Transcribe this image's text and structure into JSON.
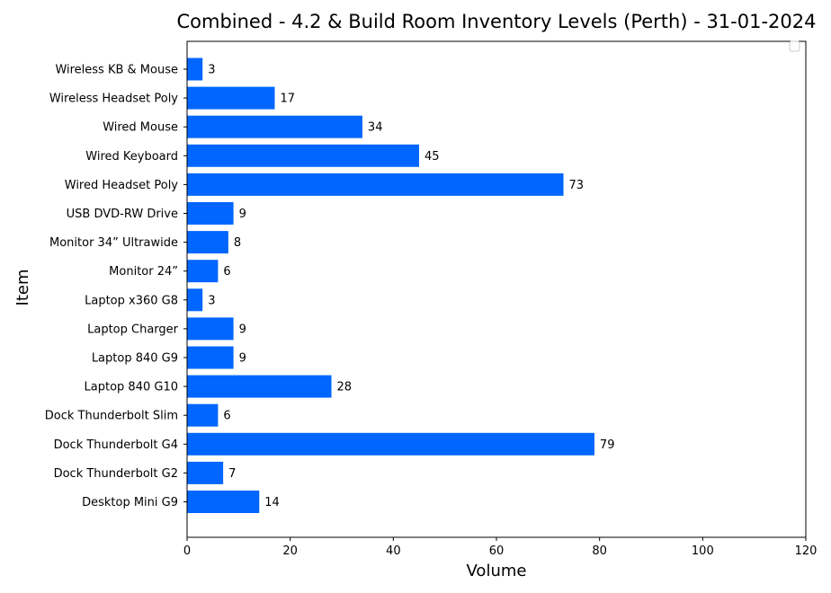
{
  "chart_data": {
    "type": "bar",
    "orientation": "horizontal",
    "title": "Combined - 4.2 & Build Room Inventory Levels (Perth) - 31-01-2024",
    "xlabel": "Volume",
    "ylabel": "Item",
    "xlim": [
      0,
      120
    ],
    "xticks": [
      0,
      20,
      40,
      60,
      80,
      100,
      120
    ],
    "grid": false,
    "legend": "top-right, empty",
    "bar_color": "#0066ff",
    "categories": [
      "Desktop Mini G9",
      "Dock Thunderbolt G2",
      "Dock Thunderbolt G4",
      "Dock Thunderbolt Slim",
      "Laptop 840 G10",
      "Laptop 840 G9",
      "Laptop Charger",
      "Laptop x360 G8",
      "Monitor 24”",
      "Monitor 34” Ultrawide",
      "USB DVD-RW Drive",
      "Wired Headset Poly",
      "Wired Keyboard",
      "Wired Mouse",
      "Wireless Headset Poly",
      "Wireless KB & Mouse"
    ],
    "values": [
      14,
      7,
      79,
      6,
      28,
      9,
      9,
      3,
      6,
      8,
      9,
      73,
      45,
      34,
      17,
      3
    ]
  }
}
